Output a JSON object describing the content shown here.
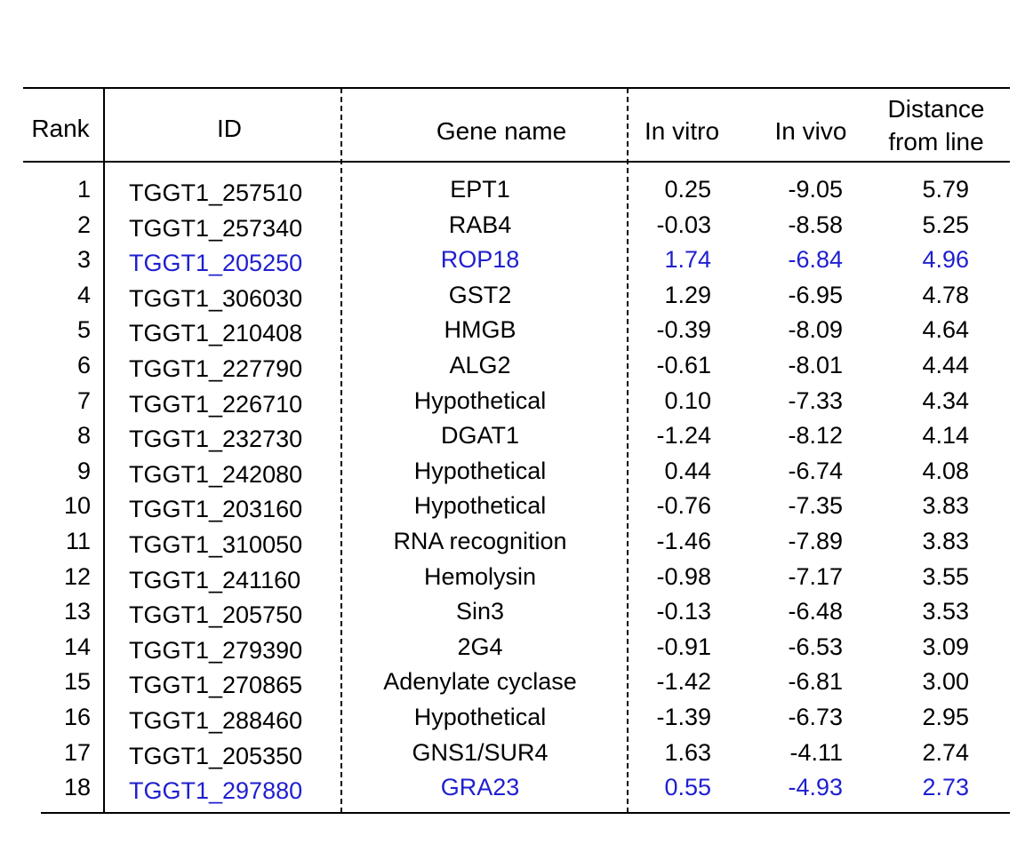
{
  "table": {
    "headers": {
      "rank": "Rank",
      "id": "ID",
      "gene_name": "Gene name",
      "in_vitro": "In vitro",
      "in_vivo": "In vivo",
      "distance_line1": "Distance",
      "distance_line2": "from line"
    },
    "highlight_color": "#1f1fd0",
    "rows": [
      {
        "rank": "1",
        "id": "TGGT1_257510",
        "gene": "EPT1",
        "in_vitro": "0.25",
        "in_vivo": "-9.05",
        "distance": "5.79",
        "highlight": false
      },
      {
        "rank": "2",
        "id": "TGGT1_257340",
        "gene": "RAB4",
        "in_vitro": "-0.03",
        "in_vivo": "-8.58",
        "distance": "5.25",
        "highlight": false
      },
      {
        "rank": "3",
        "id": "TGGT1_205250",
        "gene": "ROP18",
        "in_vitro": "1.74",
        "in_vivo": "-6.84",
        "distance": "4.96",
        "highlight": true
      },
      {
        "rank": "4",
        "id": "TGGT1_306030",
        "gene": "GST2",
        "in_vitro": "1.29",
        "in_vivo": "-6.95",
        "distance": "4.78",
        "highlight": false
      },
      {
        "rank": "5",
        "id": "TGGT1_210408",
        "gene": "HMGB",
        "in_vitro": "-0.39",
        "in_vivo": "-8.09",
        "distance": "4.64",
        "highlight": false
      },
      {
        "rank": "6",
        "id": "TGGT1_227790",
        "gene": "ALG2",
        "in_vitro": "-0.61",
        "in_vivo": "-8.01",
        "distance": "4.44",
        "highlight": false
      },
      {
        "rank": "7",
        "id": "TGGT1_226710",
        "gene": "Hypothetical",
        "in_vitro": "0.10",
        "in_vivo": "-7.33",
        "distance": "4.34",
        "highlight": false
      },
      {
        "rank": "8",
        "id": "TGGT1_232730",
        "gene": "DGAT1",
        "in_vitro": "-1.24",
        "in_vivo": "-8.12",
        "distance": "4.14",
        "highlight": false
      },
      {
        "rank": "9",
        "id": "TGGT1_242080",
        "gene": "Hypothetical",
        "in_vitro": "0.44",
        "in_vivo": "-6.74",
        "distance": "4.08",
        "highlight": false
      },
      {
        "rank": "10",
        "id": "TGGT1_203160",
        "gene": "Hypothetical",
        "in_vitro": "-0.76",
        "in_vivo": "-7.35",
        "distance": "3.83",
        "highlight": false
      },
      {
        "rank": "11",
        "id": "TGGT1_310050",
        "gene": "RNA recognition",
        "in_vitro": "-1.46",
        "in_vivo": "-7.89",
        "distance": "3.83",
        "highlight": false
      },
      {
        "rank": "12",
        "id": "TGGT1_241160",
        "gene": "Hemolysin",
        "in_vitro": "-0.98",
        "in_vivo": "-7.17",
        "distance": "3.55",
        "highlight": false
      },
      {
        "rank": "13",
        "id": "TGGT1_205750",
        "gene": "Sin3",
        "in_vitro": "-0.13",
        "in_vivo": "-6.48",
        "distance": "3.53",
        "highlight": false
      },
      {
        "rank": "14",
        "id": "TGGT1_279390",
        "gene": "2G4",
        "in_vitro": "-0.91",
        "in_vivo": "-6.53",
        "distance": "3.09",
        "highlight": false
      },
      {
        "rank": "15",
        "id": "TGGT1_270865",
        "gene": "Adenylate cyclase",
        "in_vitro": "-1.42",
        "in_vivo": "-6.81",
        "distance": "3.00",
        "highlight": false
      },
      {
        "rank": "16",
        "id": "TGGT1_288460",
        "gene": "Hypothetical",
        "in_vitro": "-1.39",
        "in_vivo": "-6.73",
        "distance": "2.95",
        "highlight": false
      },
      {
        "rank": "17",
        "id": "TGGT1_205350",
        "gene": "GNS1/SUR4",
        "in_vitro": "1.63",
        "in_vivo": "-4.11",
        "distance": "2.74",
        "highlight": false
      },
      {
        "rank": "18",
        "id": "TGGT1_297880",
        "gene": "GRA23",
        "in_vitro": "0.55",
        "in_vivo": "-4.93",
        "distance": "2.73",
        "highlight": true
      }
    ]
  }
}
